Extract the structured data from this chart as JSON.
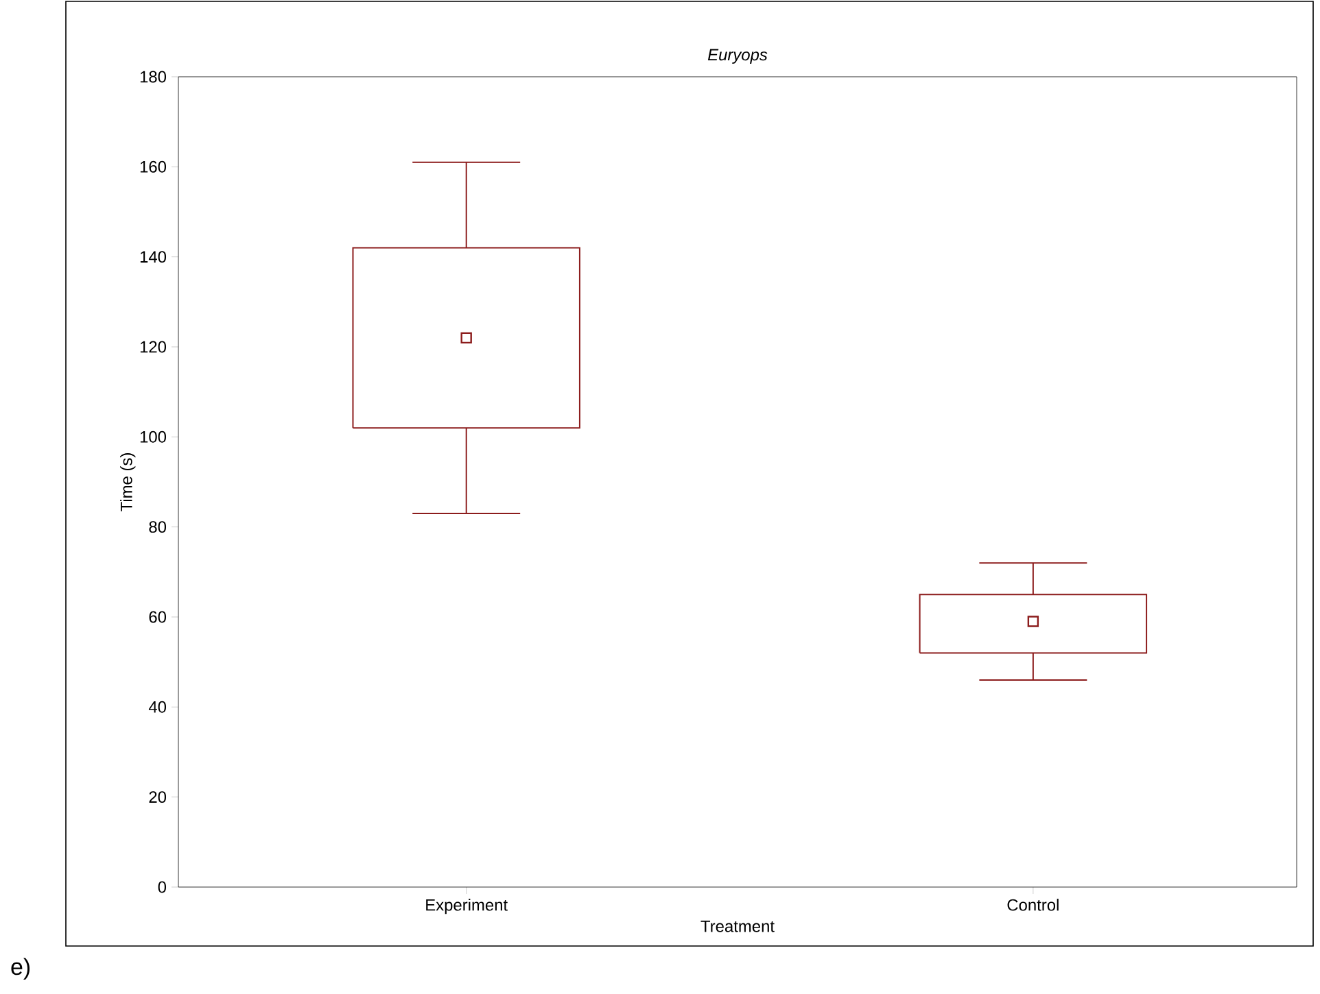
{
  "chart_data": {
    "type": "box",
    "title": "Euryops",
    "xlabel": "Treatment",
    "ylabel": "Time (s)",
    "categories": [
      "Experiment",
      "Control"
    ],
    "boxes": [
      {
        "low": 83,
        "q1": 102,
        "median": 122,
        "q3": 142,
        "high": 161
      },
      {
        "low": 46,
        "q1": 52,
        "median": 59,
        "q3": 65,
        "high": 72
      }
    ],
    "color": "#8c1c1c",
    "marker": "square",
    "ylim": [
      0,
      180
    ],
    "yticks": [
      0,
      20,
      40,
      60,
      80,
      100,
      120,
      140,
      160,
      180
    ],
    "grid": false,
    "annotations": [
      "e)"
    ]
  }
}
